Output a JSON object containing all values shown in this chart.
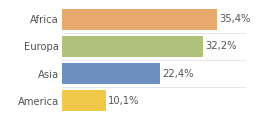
{
  "categories": [
    "America",
    "Asia",
    "Europa",
    "Africa"
  ],
  "values": [
    10.1,
    22.4,
    32.2,
    35.4
  ],
  "labels": [
    "10,1%",
    "22,4%",
    "32,2%",
    "35,4%"
  ],
  "bar_colors": [
    "#f0c84a",
    "#6d8fbf",
    "#afc17a",
    "#e8a96e"
  ],
  "xlim": [
    0,
    42
  ],
  "background_color": "#ffffff",
  "label_fontsize": 7.2,
  "tick_fontsize": 7.2,
  "bar_height": 0.78
}
